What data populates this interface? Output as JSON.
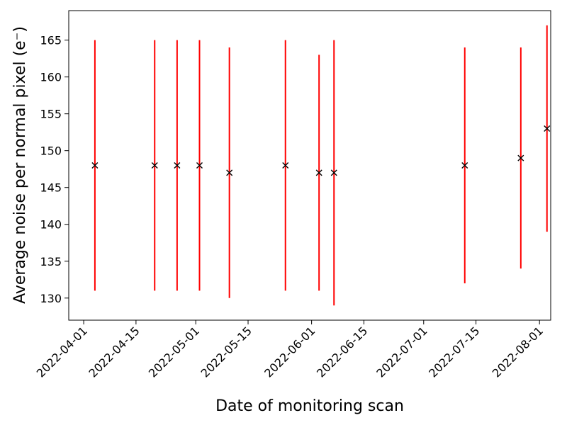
{
  "chart_data": {
    "type": "scatter",
    "title": "",
    "xlabel": "Date of monitoring scan",
    "ylabel": "Average noise per normal pixel (e⁻)",
    "x_axis_type": "date",
    "xlim": [
      "2022-03-28",
      "2022-08-04"
    ],
    "ylim": [
      127,
      169
    ],
    "x_ticks": [
      "2022-04-01",
      "2022-04-15",
      "2022-05-01",
      "2022-05-15",
      "2022-06-01",
      "2022-06-15",
      "2022-07-01",
      "2022-07-15",
      "2022-08-01"
    ],
    "y_ticks": [
      130,
      135,
      140,
      145,
      150,
      155,
      160,
      165
    ],
    "grid": false,
    "legend": "none",
    "marker": "x",
    "marker_color": "#000000",
    "errorbar_color": "#ff0000",
    "series": [
      {
        "x": [
          "2022-04-04",
          "2022-04-20",
          "2022-04-26",
          "2022-05-02",
          "2022-05-10",
          "2022-05-25",
          "2022-06-03",
          "2022-06-07",
          "2022-07-12",
          "2022-07-27",
          "2022-08-03"
        ],
        "y": [
          148,
          148,
          148,
          148,
          147,
          148,
          147,
          147,
          148,
          149,
          153
        ],
        "y_low": [
          131,
          131,
          131,
          131,
          130,
          131,
          131,
          129,
          132,
          134,
          139
        ],
        "y_high": [
          165,
          165,
          165,
          165,
          164,
          165,
          163,
          165,
          164,
          164,
          167
        ]
      }
    ]
  }
}
